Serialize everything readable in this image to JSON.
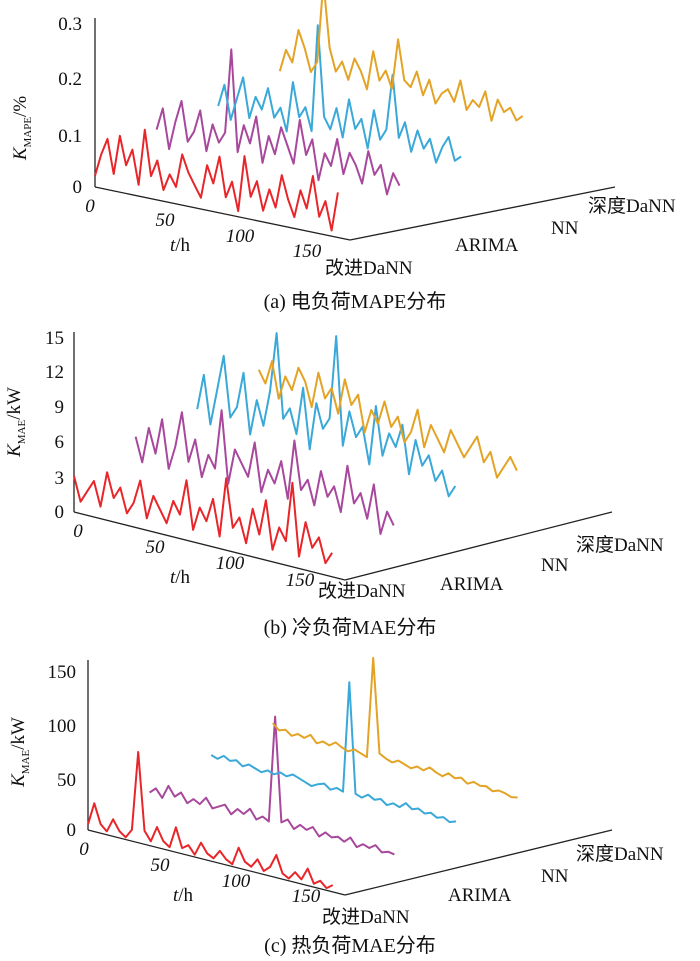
{
  "figure": {
    "category_labels": [
      "改进DaNN",
      "ARIMA",
      "NN",
      "深度DaNN"
    ],
    "series_colors": {
      "改进DaNN": "#e8262a",
      "ARIMA": "#a8489c",
      "NN": "#3aa8d8",
      "深度DaNN": "#e3a325"
    }
  },
  "chart_data": [
    {
      "type": "line",
      "title": "(a) 电负荷MAPE分布",
      "ylabel_main": "K",
      "ylabel_sub": "MAPE",
      "ylabel_unit": "/%",
      "xlabel_var": "t",
      "xlabel_unit": "/h",
      "x_ticks": [
        "0",
        "50",
        "100",
        "150"
      ],
      "y_ticks": [
        "0",
        "0.1",
        "0.2",
        "0.3"
      ],
      "ylim": [
        0,
        0.3
      ],
      "xlim": [
        0,
        168
      ],
      "depth_categories": [
        "改进DaNN",
        "ARIMA",
        "NN",
        "深度DaNN"
      ],
      "series": [
        {
          "name": "改进DaNN",
          "x_start": 0,
          "x_end": 160,
          "values": [
            0.02,
            0.06,
            0.09,
            0.03,
            0.1,
            0.05,
            0.08,
            0.02,
            0.12,
            0.04,
            0.07,
            0.02,
            0.05,
            0.03,
            0.09,
            0.06,
            0.04,
            0.02,
            0.08,
            0.05,
            0.1,
            0.03,
            0.06,
            0.01,
            0.11,
            0.04,
            0.07,
            0.02,
            0.06,
            0.03,
            0.09,
            0.05,
            0.02,
            0.07,
            0.04,
            0.1,
            0.03,
            0.06,
            0.01,
            0.08
          ]
        },
        {
          "name": "ARIMA",
          "x_start": 0,
          "x_end": 160,
          "values": [
            0.08,
            0.12,
            0.05,
            0.1,
            0.14,
            0.07,
            0.09,
            0.13,
            0.06,
            0.11,
            0.08,
            0.1,
            0.25,
            0.07,
            0.12,
            0.09,
            0.14,
            0.06,
            0.11,
            0.08,
            0.13,
            0.1,
            0.07,
            0.15,
            0.09,
            0.12,
            0.05,
            0.1,
            0.08,
            0.13,
            0.07,
            0.11,
            0.09,
            0.06,
            0.12,
            0.08,
            0.1,
            0.05,
            0.09,
            0.07
          ]
        },
        {
          "name": "NN",
          "x_start": 0,
          "x_end": 160,
          "values": [
            0.1,
            0.14,
            0.08,
            0.12,
            0.16,
            0.09,
            0.13,
            0.11,
            0.15,
            0.1,
            0.12,
            0.08,
            0.17,
            0.11,
            0.13,
            0.09,
            0.28,
            0.12,
            0.1,
            0.14,
            0.09,
            0.16,
            0.11,
            0.13,
            0.08,
            0.15,
            0.1,
            0.12,
            0.22,
            0.11,
            0.14,
            0.09,
            0.13,
            0.1,
            0.12,
            0.08,
            0.11,
            0.13,
            0.09,
            0.1
          ]
        },
        {
          "name": "深度DaNN",
          "x_start": 0,
          "x_end": 160,
          "values": [
            0.14,
            0.18,
            0.16,
            0.22,
            0.19,
            0.15,
            0.17,
            0.32,
            0.2,
            0.16,
            0.18,
            0.15,
            0.19,
            0.17,
            0.14,
            0.21,
            0.16,
            0.18,
            0.15,
            0.24,
            0.17,
            0.16,
            0.19,
            0.15,
            0.18,
            0.14,
            0.16,
            0.17,
            0.15,
            0.19,
            0.14,
            0.16,
            0.15,
            0.18,
            0.13,
            0.17,
            0.15,
            0.16,
            0.14,
            0.15
          ]
        }
      ]
    },
    {
      "type": "line",
      "title": "(b) 冷负荷MAE分布",
      "ylabel_main": "K",
      "ylabel_sub": "MAE",
      "ylabel_unit": "/kW",
      "xlabel_var": "t",
      "xlabel_unit": "/h",
      "x_ticks": [
        "0",
        "50",
        "100",
        "150"
      ],
      "y_ticks": [
        "0",
        "3",
        "6",
        "9",
        "12",
        "15"
      ],
      "ylim": [
        0,
        15
      ],
      "xlim": [
        0,
        168
      ],
      "depth_categories": [
        "改进DaNN",
        "ARIMA",
        "NN",
        "深度DaNN"
      ],
      "series": [
        {
          "name": "改进DaNN",
          "x_start": 0,
          "x_end": 160,
          "values": [
            3,
            1,
            2,
            3,
            1,
            4,
            2,
            3,
            1,
            2,
            4,
            1,
            3,
            2,
            1,
            3,
            2,
            5,
            1,
            3,
            2,
            4,
            1,
            6,
            2,
            3,
            1,
            4,
            2,
            5,
            1,
            3,
            2,
            7,
            1,
            4,
            2,
            3,
            1,
            2
          ]
        },
        {
          "name": "ARIMA",
          "x_start": 0,
          "x_end": 160,
          "values": [
            5,
            3,
            6,
            4,
            7,
            3,
            5,
            8,
            4,
            6,
            3,
            5,
            4,
            9,
            3,
            6,
            5,
            4,
            7,
            3,
            5,
            4,
            6,
            3,
            8,
            4,
            5,
            3,
            6,
            4,
            5,
            3,
            7,
            4,
            5,
            3,
            6,
            2,
            4,
            3
          ]
        },
        {
          "name": "NN",
          "x_start": 0,
          "x_end": 160,
          "values": [
            6,
            9,
            5,
            8,
            11,
            6,
            7,
            10,
            5,
            8,
            6,
            9,
            14,
            7,
            8,
            6,
            10,
            5,
            9,
            7,
            8,
            15,
            6,
            9,
            7,
            8,
            5,
            10,
            6,
            8,
            7,
            9,
            5,
            8,
            6,
            7,
            5,
            6,
            4,
            5
          ]
        },
        {
          "name": "深度DaNN",
          "x_start": 0,
          "x_end": 160,
          "values": [
            8,
            7,
            9,
            6,
            8,
            7,
            9,
            8,
            6,
            9,
            7,
            8,
            6,
            9,
            7,
            8,
            5,
            7,
            6,
            8,
            6,
            7,
            5,
            6,
            8,
            5,
            7,
            6,
            5,
            7,
            6,
            5,
            6,
            7,
            5,
            6,
            4,
            5,
            6,
            5
          ]
        }
      ]
    },
    {
      "type": "line",
      "title": "(c) 热负荷MAE分布",
      "ylabel_main": "K",
      "ylabel_sub": "MAE",
      "ylabel_unit": "/kW",
      "xlabel_var": "t",
      "xlabel_unit": "/h",
      "x_ticks": [
        "0",
        "50",
        "100",
        "150"
      ],
      "y_ticks": [
        "0",
        "50",
        "100",
        "150"
      ],
      "ylim": [
        0,
        150
      ],
      "xlim": [
        0,
        168
      ],
      "depth_categories": [
        "改进DaNN",
        "ARIMA",
        "NN",
        "深度DaNN"
      ],
      "series": [
        {
          "name": "改进DaNN",
          "x_start": 0,
          "x_end": 160,
          "values": [
            5,
            25,
            8,
            3,
            15,
            6,
            2,
            10,
            80,
            12,
            4,
            18,
            7,
            3,
            22,
            5,
            9,
            2,
            14,
            6,
            3,
            11,
            5,
            2,
            18,
            7,
            4,
            12,
            3,
            8,
            20,
            5,
            2,
            9,
            4,
            15,
            3,
            7,
            2,
            6
          ]
        },
        {
          "name": "ARIMA",
          "x_start": 0,
          "x_end": 160,
          "values": [
            20,
            25,
            18,
            30,
            22,
            27,
            19,
            24,
            21,
            28,
            20,
            23,
            26,
            19,
            25,
            22,
            28,
            20,
            24,
            21,
            115,
            23,
            27,
            20,
            25,
            22,
            26,
            19,
            24,
            21,
            23,
            20,
            25,
            18,
            22,
            20,
            24,
            19,
            21,
            20
          ]
        },
        {
          "name": "NN",
          "x_start": 0,
          "x_end": 160,
          "values": [
            40,
            38,
            42,
            39,
            41,
            37,
            40,
            38,
            36,
            39,
            37,
            40,
            38,
            41,
            39,
            37,
            35,
            38,
            40,
            36,
            39,
            37,
            135,
            38,
            36,
            40,
            37,
            39,
            35,
            38,
            36,
            41,
            37,
            39,
            36,
            38,
            35,
            37,
            34,
            36
          ]
        },
        {
          "name": "深度DaNN",
          "x_start": 0,
          "x_end": 160,
          "values": [
            55,
            50,
            52,
            48,
            51,
            49,
            53,
            47,
            50,
            48,
            52,
            49,
            47,
            50,
            48,
            46,
            135,
            52,
            49,
            47,
            50,
            48,
            46,
            49,
            47,
            51,
            48,
            46,
            50,
            47,
            49,
            45,
            48,
            46,
            47,
            44,
            46,
            45,
            43,
            44
          ]
        }
      ]
    }
  ]
}
